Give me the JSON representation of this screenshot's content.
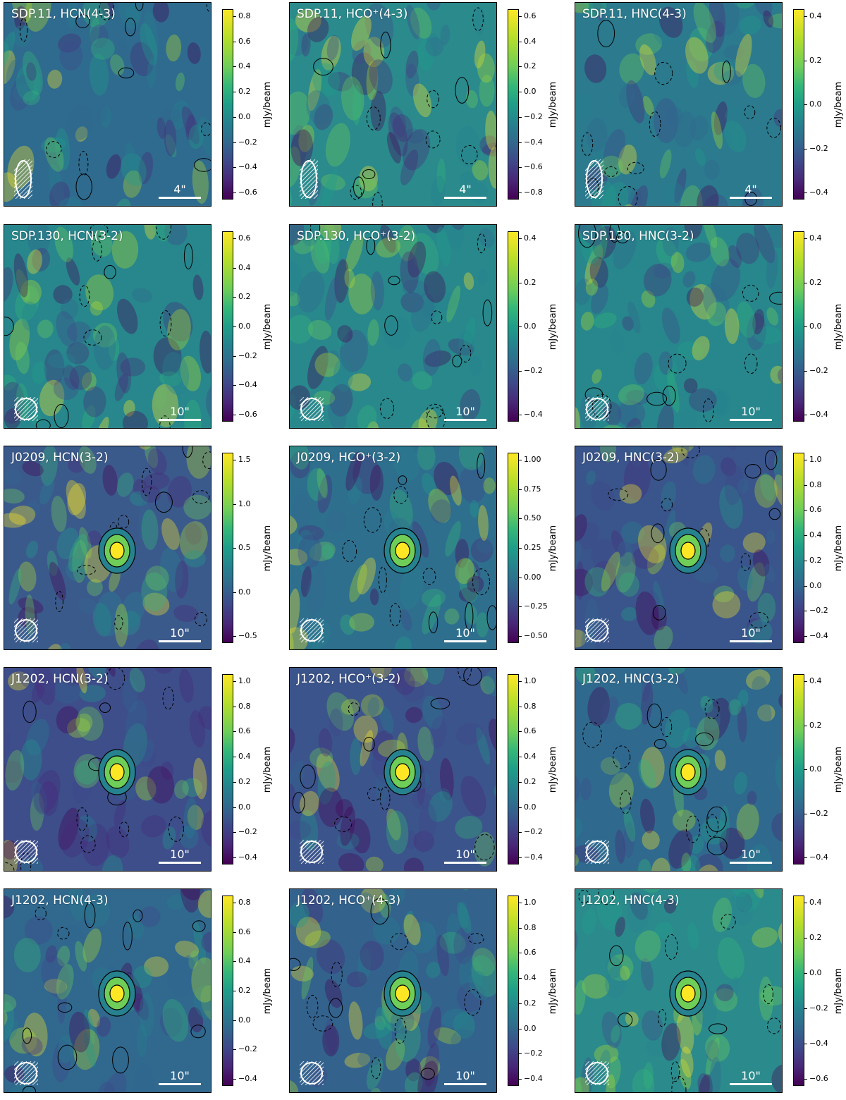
{
  "colorbar_unit": "mJy/beam",
  "colormap": [
    "#440154",
    "#482878",
    "#3e4989",
    "#31688e",
    "#26828e",
    "#1f9e89",
    "#35b779",
    "#6ece58",
    "#b5de2b",
    "#fde725"
  ],
  "panels": [
    {
      "title": "SDP.11, HCN(4-3)",
      "scale": "4\"",
      "ticks": [
        "0.8",
        "0.6",
        "0.4",
        "0.2",
        "0.0",
        "−0.2",
        "−0.4",
        "−0.6"
      ],
      "bg": "#2f6b8e"
    },
    {
      "title": "SDP.11, HCO⁺(4-3)",
      "scale": "4\"",
      "ticks": [
        "0.6",
        "0.4",
        "0.2",
        "0.0",
        "−0.2",
        "−0.4",
        "−0.6",
        "−0.8"
      ],
      "bg": "#2a8a8c"
    },
    {
      "title": "SDP.11, HNC(4-3)",
      "scale": "4\"",
      "ticks": [
        "0.4",
        "0.2",
        "0.0",
        "−0.2",
        "−0.4"
      ],
      "bg": "#2b7a8e"
    },
    {
      "title": "SDP.130, HCN(3-2)",
      "scale": "10\"",
      "ticks": [
        "0.6",
        "0.4",
        "0.2",
        "0.0",
        "−0.2",
        "−0.4",
        "−0.6"
      ],
      "bg": "#27878c"
    },
    {
      "title": "SDP.130, HCO⁺(3-2)",
      "scale": "10\"",
      "ticks": [
        "0.4",
        "0.2",
        "0.0",
        "−0.2",
        "−0.4"
      ],
      "bg": "#28888c"
    },
    {
      "title": "SDP.130, HNC(3-2)",
      "scale": "10\"",
      "ticks": [
        "0.4",
        "0.2",
        "0.0",
        "−0.2",
        "−0.4"
      ],
      "bg": "#27878c"
    },
    {
      "title": "J0209, HCN(3-2)",
      "scale": "10\"",
      "ticks": [
        "1.5",
        "1.0",
        "0.5",
        "0.0",
        "−0.5"
      ],
      "bg": "#3b5a8c"
    },
    {
      "title": "J0209, HCO⁺(3-2)",
      "scale": "10\"",
      "ticks": [
        "1.00",
        "0.75",
        "0.50",
        "0.25",
        "0.00",
        "−0.25",
        "−0.50"
      ],
      "bg": "#2e6f8e"
    },
    {
      "title": "J0209, HNC(3-2)",
      "scale": "10\"",
      "ticks": [
        "1.0",
        "0.8",
        "0.6",
        "0.4",
        "0.2",
        "0.0",
        "−0.2",
        "−0.4"
      ],
      "bg": "#3a558b"
    },
    {
      "title": "J1202, HCN(3-2)",
      "scale": "10\"",
      "ticks": [
        "1.0",
        "0.8",
        "0.6",
        "0.4",
        "0.2",
        "0.0",
        "−0.2",
        "−0.4"
      ],
      "bg": "#3d4e8a"
    },
    {
      "title": "J1202, HCO⁺(3-2)",
      "scale": "10\"",
      "ticks": [
        "1.0",
        "0.8",
        "0.6",
        "0.4",
        "0.2",
        "0.0",
        "−0.2",
        "−0.4"
      ],
      "bg": "#3b548b"
    },
    {
      "title": "J1202, HNC(3-2)",
      "scale": "10\"",
      "ticks": [
        "0.4",
        "0.2",
        "0.0",
        "−0.2",
        "−0.4"
      ],
      "bg": "#2f6a8e"
    },
    {
      "title": "J1202, HCN(4-3)",
      "scale": "10\"",
      "ticks": [
        "0.8",
        "0.6",
        "0.4",
        "0.2",
        "0.0",
        "−0.2",
        "−0.4"
      ],
      "bg": "#31688e"
    },
    {
      "title": "J1202, HCO⁺(4-3)",
      "scale": "10\"",
      "ticks": [
        "1.0",
        "0.8",
        "0.6",
        "0.4",
        "0.2",
        "0.0",
        "−0.2",
        "−0.4"
      ],
      "bg": "#33628d"
    },
    {
      "title": "J1202, HNC(4-3)",
      "scale": "10\"",
      "ticks": [
        "0.4",
        "0.2",
        "0.0",
        "−0.2",
        "−0.4",
        "−0.6"
      ],
      "bg": "#2b8a8c"
    }
  ]
}
